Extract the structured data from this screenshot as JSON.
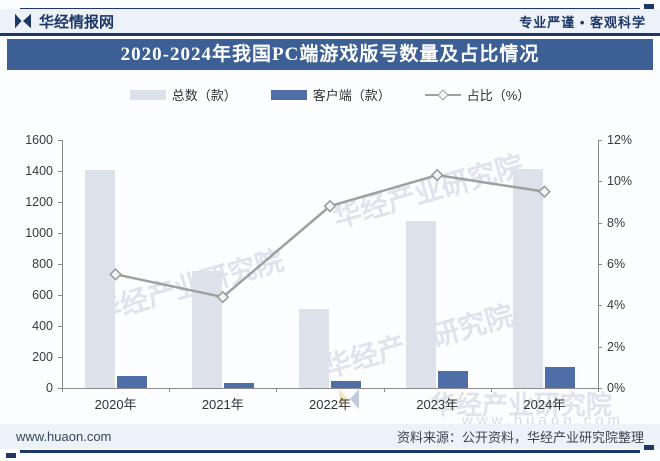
{
  "header": {
    "brand": "华经情报网",
    "slogan": "专业严谨 • 客观科学"
  },
  "title": "2020-2024年我国PC端游戏版号数量及占比情况",
  "legend": [
    {
      "label": "总数（款）",
      "swatch": "#dce1ea",
      "type": "bar"
    },
    {
      "label": "客户端（款）",
      "swatch": "#4f6ea8",
      "type": "bar"
    },
    {
      "label": "占比（%）",
      "swatch": "#a0a0a0",
      "type": "line"
    }
  ],
  "chart_data": {
    "type": "bar",
    "title": "2020-2024年我国PC端游戏版号数量及占比情况",
    "categories": [
      "2020年",
      "2021年",
      "2022年",
      "2023年",
      "2024年"
    ],
    "series": [
      {
        "name": "总数（款）",
        "type": "bar",
        "axis": "left",
        "color": "#dce1ea",
        "values": [
          1405,
          755,
          512,
          1075,
          1416
        ]
      },
      {
        "name": "客户端（款）",
        "type": "bar",
        "axis": "left",
        "color": "#4f6ea8",
        "values": [
          77,
          33,
          45,
          111,
          134
        ]
      },
      {
        "name": "占比（%）",
        "type": "line",
        "axis": "right",
        "color": "#a0a0a0",
        "marker": "diamond",
        "values": [
          5.5,
          4.4,
          8.8,
          10.3,
          9.5
        ]
      }
    ],
    "left_axis": {
      "min": 0,
      "max": 1600,
      "step": 200,
      "ticks": [
        "0",
        "200",
        "400",
        "600",
        "800",
        "1000",
        "1200",
        "1400",
        "1600"
      ]
    },
    "right_axis": {
      "min": 0,
      "max": 12,
      "step": 2,
      "ticks": [
        "0%",
        "2%",
        "4%",
        "6%",
        "8%",
        "10%",
        "12%"
      ]
    },
    "grid": false,
    "legend_position": "top"
  },
  "watermarks": {
    "text": "华经产业研究院",
    "site": "www.huaon.com"
  },
  "footer": {
    "site": "www.huaon.com",
    "source": "资料来源：公开资料，华经产业研究院整理"
  }
}
